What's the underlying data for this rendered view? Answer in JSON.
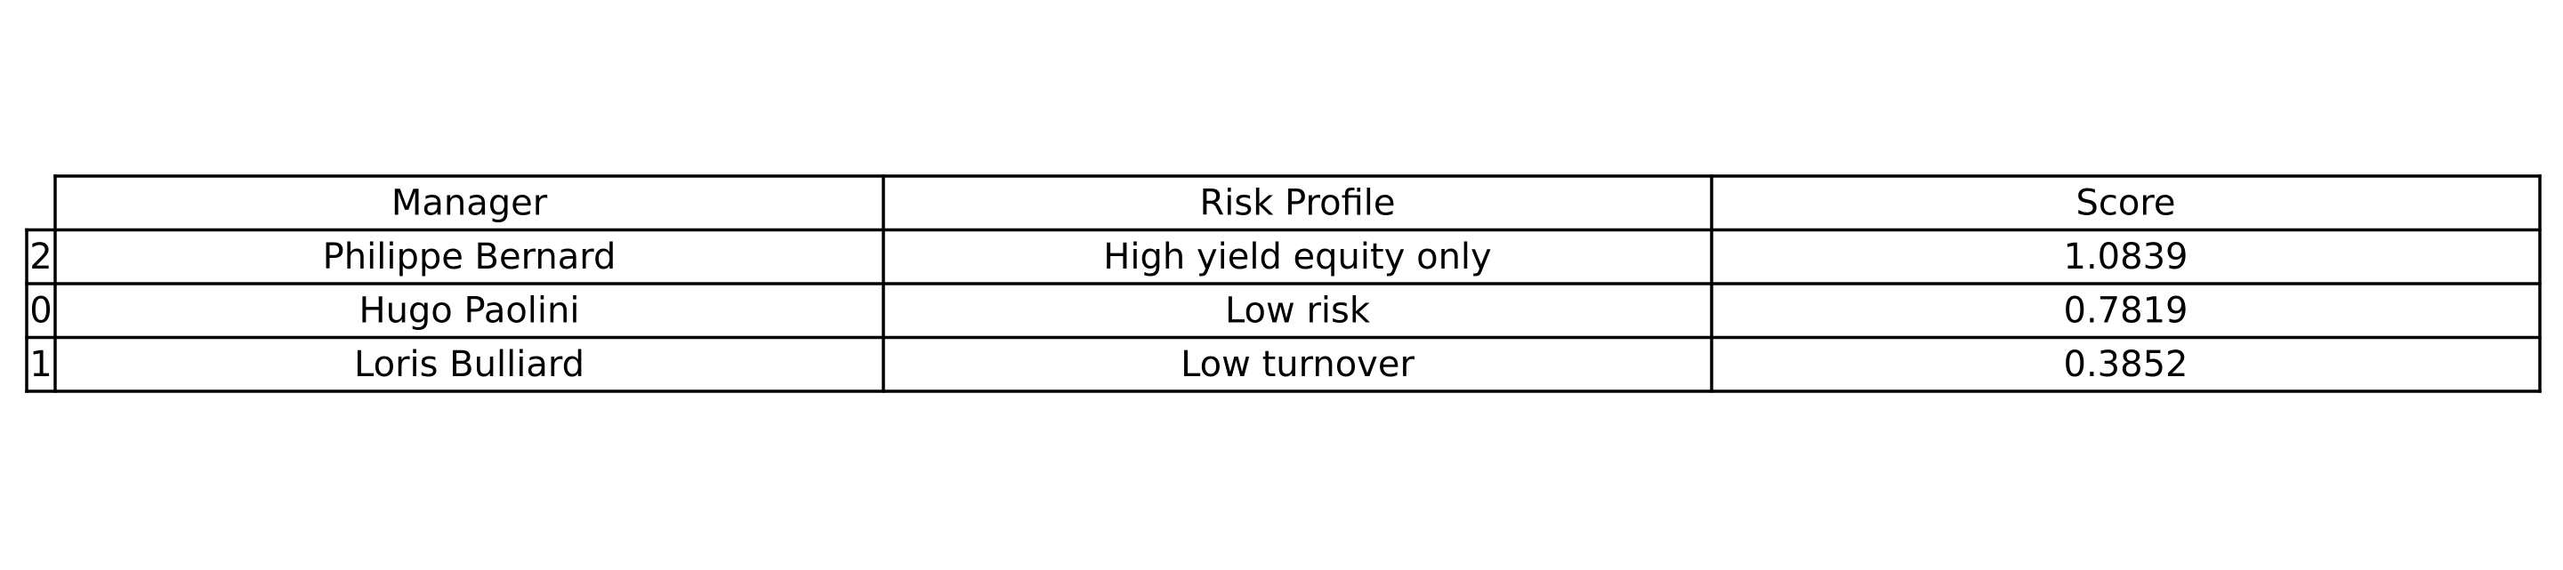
{
  "chart_data": {
    "type": "table",
    "columns": [
      "Manager",
      "Risk Profile",
      "Score"
    ],
    "rows": [
      {
        "index": "2",
        "cells": [
          "Philippe Bernard",
          "High yield equity only",
          "1.0839"
        ]
      },
      {
        "index": "0",
        "cells": [
          "Hugo Paolini",
          "Low risk",
          "0.7819"
        ]
      },
      {
        "index": "1",
        "cells": [
          "Loris Bulliard",
          "Low turnover",
          "0.3852"
        ]
      }
    ]
  }
}
